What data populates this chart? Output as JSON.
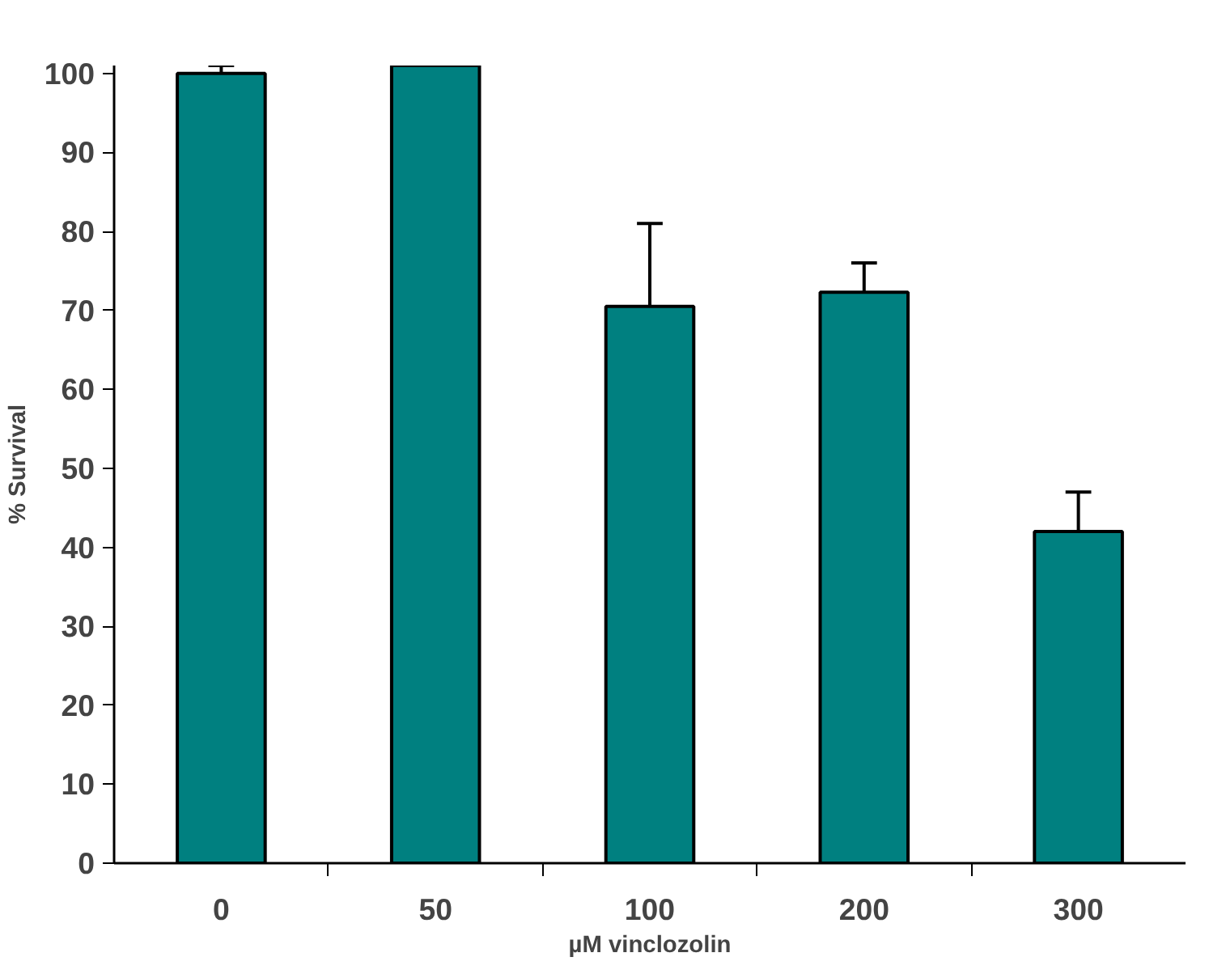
{
  "chart_data": {
    "type": "bar",
    "xlabel": "µM vinclozolin",
    "ylabel": "% Survival",
    "categories": [
      "0",
      "50",
      "100",
      "200",
      "300"
    ],
    "values": [
      100,
      101,
      70.5,
      72.3,
      42
    ],
    "errors": [
      [
        100,
        101
      ],
      null,
      [
        70.5,
        81
      ],
      [
        72.3,
        76
      ],
      [
        42,
        47
      ]
    ],
    "color": "#008080",
    "ylim": [
      0,
      101
    ],
    "yticks": [
      0,
      10,
      20,
      30,
      40,
      50,
      60,
      70,
      80,
      90,
      100
    ],
    "grid": false
  }
}
